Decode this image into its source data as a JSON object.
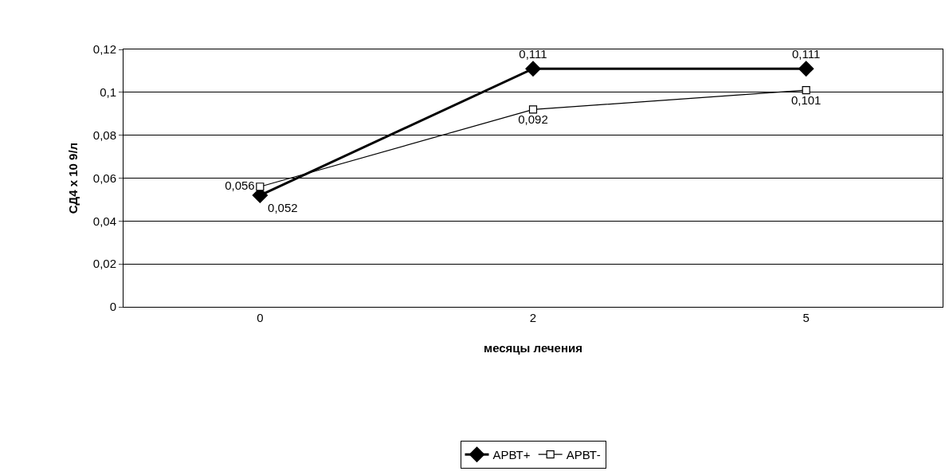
{
  "chart_data": {
    "type": "line",
    "xlabel": "месяцы лечения",
    "ylabel": "СД4 х 10 9/л",
    "categories": [
      "0",
      "2",
      "5"
    ],
    "series": [
      {
        "name": "АРВТ+",
        "color": "#000000",
        "marker": "diamond",
        "values": [
          0.052,
          0.111,
          0.111
        ],
        "value_labels": [
          "0,052",
          "0,111",
          "0,111"
        ]
      },
      {
        "name": "АРВТ-",
        "color": "#000000",
        "marker": "square",
        "values": [
          0.056,
          0.092,
          0.101
        ],
        "value_labels": [
          "0,056",
          "0,092",
          "0,101"
        ]
      }
    ],
    "ylim": [
      0,
      0.12
    ],
    "yticks": [
      {
        "value": 0,
        "label": "0"
      },
      {
        "value": 0.02,
        "label": "0,02"
      },
      {
        "value": 0.04,
        "label": "0,04"
      },
      {
        "value": 0.06,
        "label": "0,06"
      },
      {
        "value": 0.08,
        "label": "0,08"
      },
      {
        "value": 0.1,
        "label": "0,1"
      },
      {
        "value": 0.12,
        "label": "0,12"
      }
    ],
    "grid": "y",
    "legend": "bottom",
    "line_style": "solid"
  }
}
